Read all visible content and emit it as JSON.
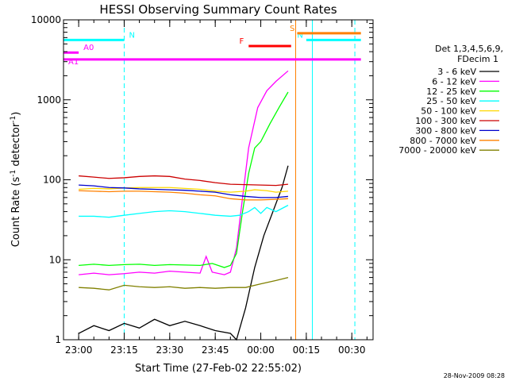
{
  "chart_data": {
    "type": "line",
    "title": "HESSI Observing Summary Count Rates",
    "xlabel": "Start Time (27-Feb-02 22:55:02)",
    "ylabel_main": "Count Rate (s",
    "ylabel_sup1": "-1",
    "ylabel_mid": " detector",
    "ylabel_sup2": "-1",
    "ylabel_end": ")",
    "y_scale": "log",
    "ylim": [
      1,
      10000
    ],
    "xlim_minutes": [
      -5,
      37
    ],
    "x_ticks": [
      {
        "label": "23:00",
        "m": 0
      },
      {
        "label": "23:15",
        "m": 15
      },
      {
        "label": "23:30",
        "m": 30
      },
      {
        "label": "23:45",
        "m": 45
      },
      {
        "label": "00:00",
        "m": 60
      },
      {
        "label": "00:15",
        "m": 75
      },
      {
        "label": "00:30",
        "m": 90
      }
    ],
    "y_ticks": [
      {
        "label": "1",
        "v": 1
      },
      {
        "label": "10",
        "v": 10
      },
      {
        "label": "100",
        "v": 100
      },
      {
        "label": "1000",
        "v": 1000
      },
      {
        "label": "10000",
        "v": 10000
      }
    ],
    "legend": {
      "header1": "Det 1,3,4,5,6,9,",
      "header2": "FDecim 1",
      "placement": "right"
    },
    "series": [
      {
        "name": "3 - 6 keV",
        "color": "#000000",
        "points": [
          [
            0,
            1.2
          ],
          [
            5,
            1.5
          ],
          [
            10,
            1.3
          ],
          [
            15,
            1.6
          ],
          [
            20,
            1.4
          ],
          [
            25,
            1.8
          ],
          [
            30,
            1.5
          ],
          [
            35,
            1.7
          ],
          [
            40,
            1.5
          ],
          [
            45,
            1.3
          ],
          [
            50,
            1.2
          ],
          [
            52,
            1
          ],
          [
            55,
            2.5
          ],
          [
            58,
            8
          ],
          [
            61,
            20
          ],
          [
            64,
            40
          ],
          [
            67,
            80
          ],
          [
            69,
            150
          ]
        ]
      },
      {
        "name": "6 - 12 keV",
        "color": "#ff00ff",
        "points": [
          [
            0,
            6.5
          ],
          [
            5,
            6.8
          ],
          [
            10,
            6.5
          ],
          [
            15,
            6.7
          ],
          [
            20,
            7
          ],
          [
            25,
            6.8
          ],
          [
            30,
            7.2
          ],
          [
            35,
            7
          ],
          [
            40,
            6.8
          ],
          [
            42,
            11
          ],
          [
            44,
            7
          ],
          [
            48,
            6.5
          ],
          [
            50,
            7
          ],
          [
            52,
            14
          ],
          [
            54,
            60
          ],
          [
            56,
            250
          ],
          [
            59,
            800
          ],
          [
            62,
            1300
          ],
          [
            65,
            1700
          ],
          [
            69,
            2300
          ]
        ]
      },
      {
        "name": "12 - 25 keV",
        "color": "#00ff00",
        "points": [
          [
            0,
            8.5
          ],
          [
            5,
            8.8
          ],
          [
            10,
            8.5
          ],
          [
            15,
            8.7
          ],
          [
            20,
            8.8
          ],
          [
            25,
            8.5
          ],
          [
            30,
            8.7
          ],
          [
            35,
            8.6
          ],
          [
            40,
            8.5
          ],
          [
            44,
            9
          ],
          [
            48,
            8
          ],
          [
            50,
            8.5
          ],
          [
            52,
            12
          ],
          [
            54,
            40
          ],
          [
            56,
            120
          ],
          [
            58,
            250
          ],
          [
            60,
            300
          ],
          [
            63,
            500
          ],
          [
            66,
            800
          ],
          [
            69,
            1250
          ]
        ]
      },
      {
        "name": "25 - 50 keV",
        "color": "#00ffff",
        "points": [
          [
            0,
            35
          ],
          [
            5,
            35
          ],
          [
            10,
            34
          ],
          [
            15,
            36
          ],
          [
            20,
            38
          ],
          [
            25,
            40
          ],
          [
            30,
            41
          ],
          [
            35,
            40
          ],
          [
            40,
            38
          ],
          [
            45,
            36
          ],
          [
            50,
            35
          ],
          [
            53,
            36
          ],
          [
            56,
            40
          ],
          [
            58,
            45
          ],
          [
            60,
            38
          ],
          [
            62,
            45
          ],
          [
            65,
            40
          ],
          [
            69,
            48
          ]
        ]
      },
      {
        "name": "50 - 100 keV",
        "color": "#ffd700",
        "points": [
          [
            0,
            76
          ],
          [
            5,
            78
          ],
          [
            10,
            77
          ],
          [
            15,
            79
          ],
          [
            20,
            80
          ],
          [
            25,
            80
          ],
          [
            30,
            80
          ],
          [
            35,
            78
          ],
          [
            40,
            76
          ],
          [
            45,
            72
          ],
          [
            50,
            70
          ],
          [
            55,
            72
          ],
          [
            58,
            75
          ],
          [
            62,
            73
          ],
          [
            65,
            70
          ],
          [
            69,
            72
          ]
        ]
      },
      {
        "name": "100 - 300 keV",
        "color": "#cc0000",
        "points": [
          [
            0,
            112
          ],
          [
            5,
            108
          ],
          [
            10,
            104
          ],
          [
            15,
            106
          ],
          [
            20,
            110
          ],
          [
            25,
            112
          ],
          [
            30,
            110
          ],
          [
            35,
            102
          ],
          [
            40,
            98
          ],
          [
            45,
            92
          ],
          [
            50,
            88
          ],
          [
            55,
            87
          ],
          [
            60,
            86
          ],
          [
            65,
            85
          ],
          [
            69,
            88
          ]
        ]
      },
      {
        "name": "300 - 800 keV",
        "color": "#0000cc",
        "points": [
          [
            0,
            86
          ],
          [
            5,
            84
          ],
          [
            10,
            80
          ],
          [
            15,
            79
          ],
          [
            20,
            77
          ],
          [
            25,
            76
          ],
          [
            30,
            75
          ],
          [
            35,
            74
          ],
          [
            40,
            72
          ],
          [
            45,
            70
          ],
          [
            50,
            65
          ],
          [
            55,
            62
          ],
          [
            60,
            60
          ],
          [
            65,
            60
          ],
          [
            69,
            62
          ]
        ]
      },
      {
        "name": "800 - 7000 keV",
        "color": "#ff8000",
        "points": [
          [
            0,
            73
          ],
          [
            5,
            72
          ],
          [
            10,
            71
          ],
          [
            15,
            72
          ],
          [
            20,
            72
          ],
          [
            25,
            71
          ],
          [
            30,
            70
          ],
          [
            35,
            68
          ],
          [
            40,
            65
          ],
          [
            45,
            63
          ],
          [
            50,
            58
          ],
          [
            55,
            56
          ],
          [
            60,
            56
          ],
          [
            65,
            57
          ],
          [
            69,
            58
          ]
        ]
      },
      {
        "name": "7000 - 20000 keV",
        "color": "#808000",
        "points": [
          [
            0,
            4.5
          ],
          [
            5,
            4.4
          ],
          [
            10,
            4.2
          ],
          [
            15,
            4.8
          ],
          [
            20,
            4.6
          ],
          [
            25,
            4.5
          ],
          [
            30,
            4.6
          ],
          [
            35,
            4.4
          ],
          [
            40,
            4.5
          ],
          [
            45,
            4.4
          ],
          [
            50,
            4.5
          ],
          [
            55,
            4.5
          ],
          [
            60,
            5
          ],
          [
            65,
            5.5
          ],
          [
            69,
            6
          ]
        ]
      }
    ],
    "flags": [
      {
        "label": "N",
        "color": "#00ffff",
        "y": 5600,
        "m_start": -5,
        "m_end": 15
      },
      {
        "label": "N",
        "color": "#00ffff",
        "y": 5600,
        "m_start": 75,
        "m_end": 93
      },
      {
        "label": "S",
        "color": "#ff8000",
        "y": 6800,
        "m_start": 72,
        "m_end": 93
      },
      {
        "label": "F",
        "color": "#ff0000",
        "y": 4700,
        "m_start": 56,
        "m_end": 70
      },
      {
        "label": "A0",
        "color": "#ff00ff",
        "y": 3900,
        "m_start": -5,
        "m_end": 0
      },
      {
        "label": "A1",
        "color": "#ff00ff",
        "y": 3200,
        "m_start": -5,
        "m_end": 93
      }
    ],
    "vlines": [
      {
        "m": 15,
        "color": "#00ffff",
        "dashed": true
      },
      {
        "m": 71.5,
        "color": "#ff8000",
        "dashed": false
      },
      {
        "m": 77,
        "color": "#00ffff",
        "dashed": false
      },
      {
        "m": 91,
        "color": "#00ffff",
        "dashed": true
      }
    ],
    "timestamp": "28-Nov-2009 08:28"
  }
}
